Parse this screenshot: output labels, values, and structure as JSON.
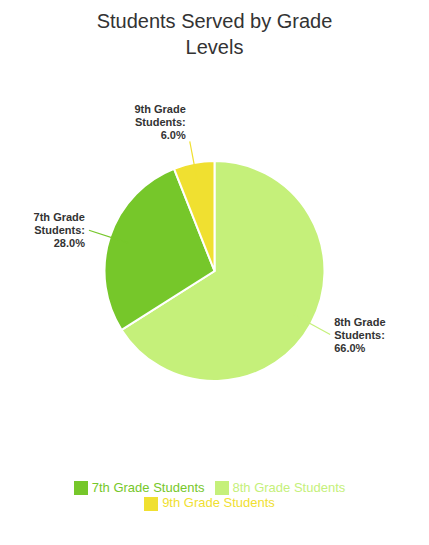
{
  "chart_data": {
    "type": "pie",
    "title": "Students Served by Grade\nLevels",
    "categories": [
      "8th Grade Students",
      "7th Grade Students",
      "9th Grade Students"
    ],
    "values": [
      66.0,
      28.0,
      6.0
    ],
    "value_labels": [
      "8th Grade\nStudents:\n66.0%",
      "7th Grade\nStudents:\n28.0%",
      "9th Grade\nStudents:\n6.0%"
    ],
    "colors": [
      "#c5f07a",
      "#76c72a",
      "#f0e030"
    ],
    "data_labels": true,
    "legend": "bottom"
  }
}
